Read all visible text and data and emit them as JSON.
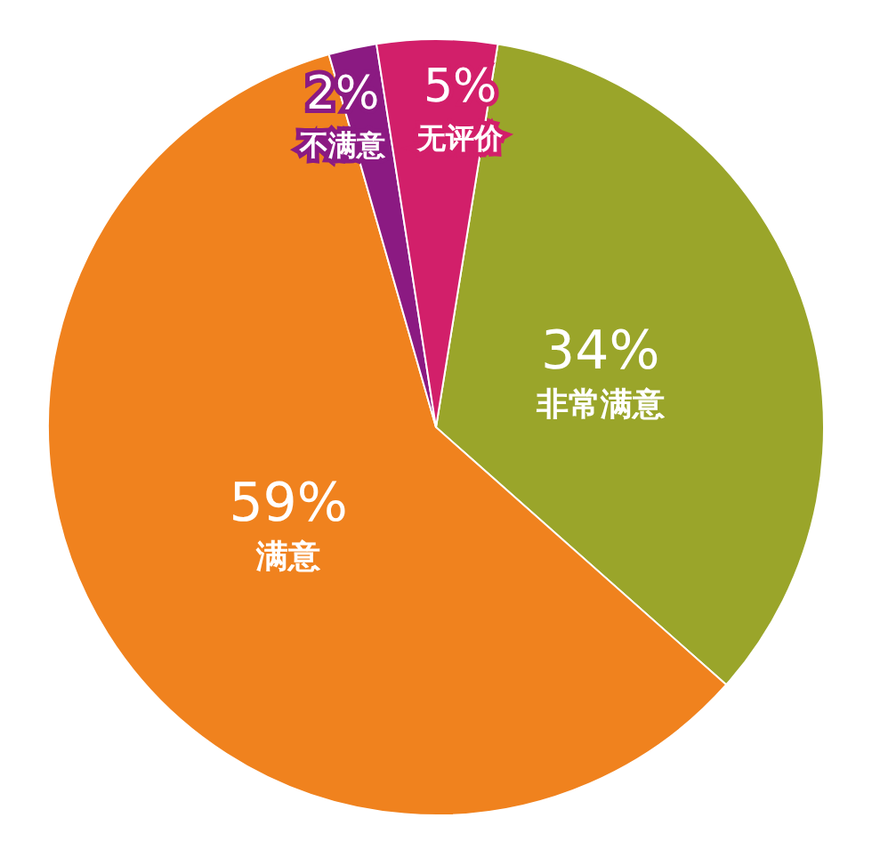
{
  "chart_data": {
    "type": "pie",
    "categories": [
      "非常满意",
      "满意",
      "不满意",
      "无评价"
    ],
    "values": [
      34,
      59,
      2,
      5
    ],
    "value_labels": [
      "34%",
      "59%",
      "2%",
      "5%"
    ],
    "colors": [
      "#9aa52a",
      "#f0821e",
      "#8b1a82",
      "#d21f6a"
    ]
  }
}
